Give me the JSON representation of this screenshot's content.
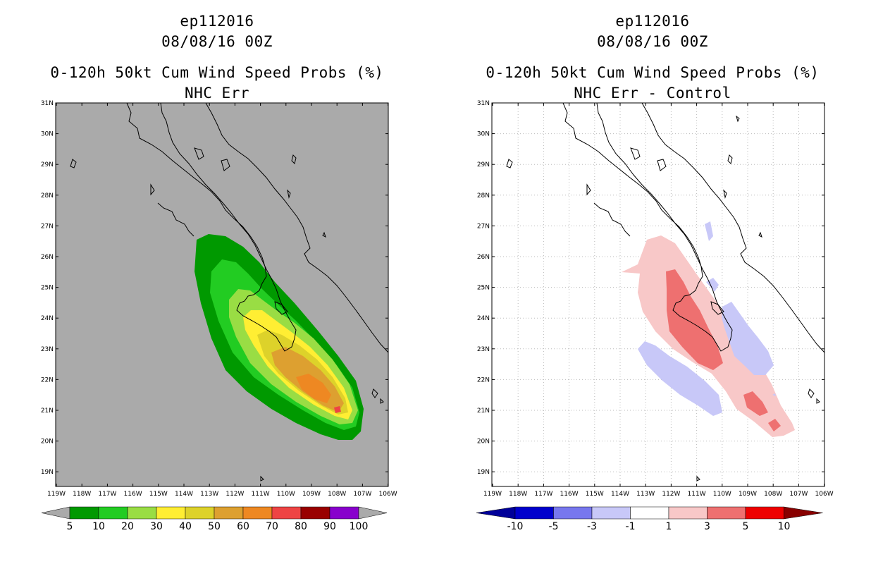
{
  "left_panel": {
    "storm_id": "ep112016",
    "datetime": "08/08/16 00Z",
    "title": "0-120h 50kt Cum Wind Speed Probs (%)",
    "subtitle": "NHC Err",
    "colorbar": {
      "labels": [
        "5",
        "10",
        "20",
        "30",
        "40",
        "50",
        "60",
        "70",
        "80",
        "90",
        "100"
      ],
      "colors": [
        "#009900",
        "#22cc22",
        "#99dd44",
        "#ffee33",
        "#ddd22a",
        "#dda030",
        "#ee8822",
        "#ee4444",
        "#990000",
        "#8800cc"
      ],
      "under_color": "#aaaaaa",
      "over_color": "#aaaaaa"
    }
  },
  "right_panel": {
    "storm_id": "ep112016",
    "datetime": "08/08/16 00Z",
    "title": "0-120h 50kt Cum Wind Speed Probs (%)",
    "subtitle": "NHC Err - Control",
    "colorbar": {
      "labels": [
        "-10",
        "-5",
        "-3",
        "-1",
        "1",
        "3",
        "5",
        "10"
      ],
      "colors": [
        "#0000cc",
        "#7777ee",
        "#c8c8f8",
        "#ffffff",
        "#f8c8c8",
        "#ee7070",
        "#ee0000"
      ],
      "under_color": "#000099",
      "over_color": "#880000"
    }
  },
  "axes": {
    "lat_labels": [
      "31N",
      "30N",
      "29N",
      "28N",
      "27N",
      "26N",
      "25N",
      "24N",
      "23N",
      "22N",
      "21N",
      "20N",
      "19N"
    ],
    "lon_labels": [
      "119W",
      "118W",
      "117W",
      "116W",
      "115W",
      "114W",
      "113W",
      "112W",
      "111W",
      "110W",
      "109W",
      "108W",
      "107W",
      "106W"
    ],
    "lat_range": [
      18.5,
      31
    ],
    "lon_range": [
      -119,
      -106
    ]
  },
  "colors": {
    "map_background_left": "#aaaaaa",
    "map_background_right": "#ffffff",
    "gridline": "#bbbbbb"
  }
}
